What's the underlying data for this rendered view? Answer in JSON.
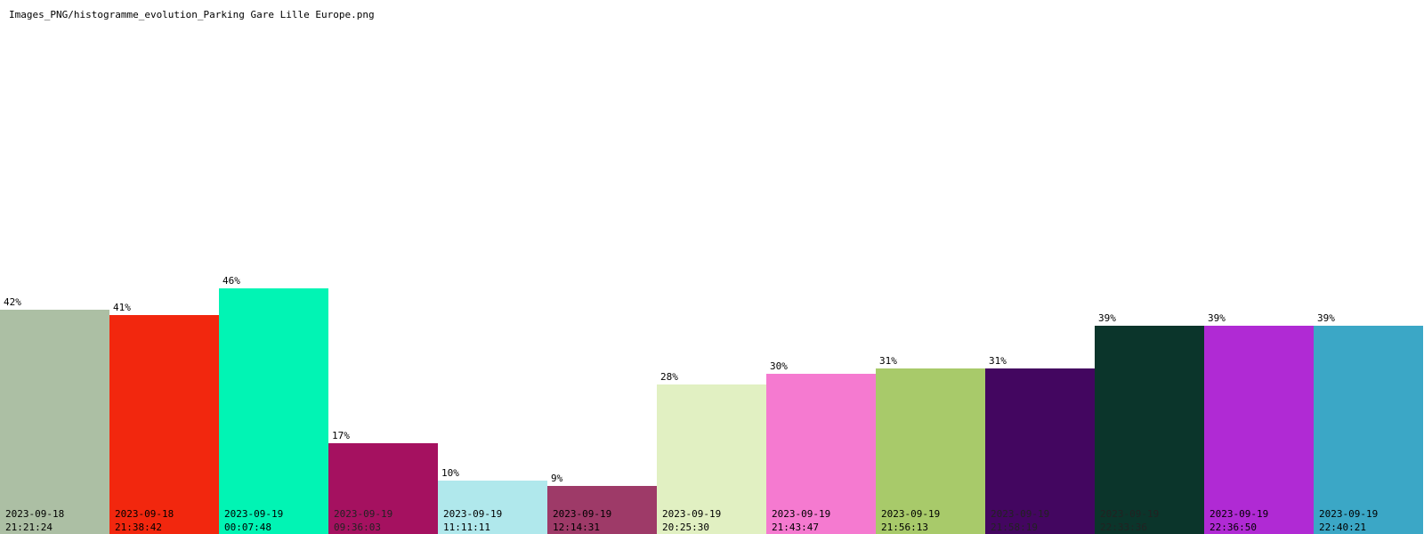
{
  "file_title": "Images_PNG/histogramme_evolution_Parking Gare Lille Europe.png",
  "chart_data": {
    "type": "bar",
    "title": "",
    "xlabel": "",
    "ylabel": "",
    "ylim": [
      0,
      100
    ],
    "grid": false,
    "value_suffix": "%",
    "bars": [
      {
        "date": "2023-09-18",
        "time": "21:21:24",
        "value": 42,
        "label": "42%",
        "color": "#acbfa4"
      },
      {
        "date": "2023-09-18",
        "time": "21:38:42",
        "value": 41,
        "label": "41%",
        "color": "#f2270e"
      },
      {
        "date": "2023-09-19",
        "time": "00:07:48",
        "value": 46,
        "label": "46%",
        "color": "#01f4b4"
      },
      {
        "date": "2023-09-19",
        "time": "09:36:03",
        "value": 17,
        "label": "17%",
        "color": "#a51160"
      },
      {
        "date": "2023-09-19",
        "time": "11:11:11",
        "value": 10,
        "label": "10%",
        "color": "#b0e8ec"
      },
      {
        "date": "2023-09-19",
        "time": "12:14:31",
        "value": 9,
        "label": "9%",
        "color": "#9e3a68"
      },
      {
        "date": "2023-09-19",
        "time": "20:25:30",
        "value": 28,
        "label": "28%",
        "color": "#e1f0c2"
      },
      {
        "date": "2023-09-19",
        "time": "21:43:47",
        "value": 30,
        "label": "30%",
        "color": "#f57ad0"
      },
      {
        "date": "2023-09-19",
        "time": "21:56:13",
        "value": 31,
        "label": "31%",
        "color": "#a8ca6a"
      },
      {
        "date": "2023-09-19",
        "time": "21:58:19",
        "value": 31,
        "label": "31%",
        "color": "#430660"
      },
      {
        "date": "2023-09-19",
        "time": "22:33:36",
        "value": 39,
        "label": "39%",
        "color": "#0b352b"
      },
      {
        "date": "2023-09-19",
        "time": "22:36:50",
        "value": 39,
        "label": "39%",
        "color": "#b02ad4"
      },
      {
        "date": "2023-09-19",
        "time": "22:40:21",
        "value": 39,
        "label": "39%",
        "color": "#3ba7c6"
      }
    ]
  }
}
